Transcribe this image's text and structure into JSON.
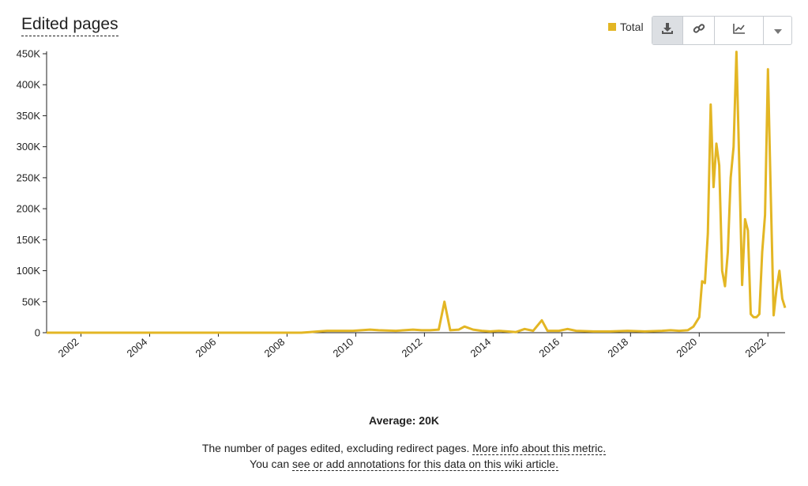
{
  "header": {
    "title": "Edited pages"
  },
  "legend": {
    "label": "Total",
    "color": "#e3b624"
  },
  "toolbar": {
    "download": "download-icon",
    "link": "link-icon",
    "chart_type": "line-chart-icon",
    "more": "chevron-down-icon"
  },
  "footer": {
    "average": "Average: 20K",
    "description": "The number of pages edited, excluding redirect pages.",
    "more_info_link": "More info about this metric.",
    "annotations_prefix": "You can",
    "annotations_link": "see or add annotations for this data on this wiki article."
  },
  "chart_data": {
    "type": "line",
    "title": "Edited pages",
    "series": [
      {
        "name": "Total",
        "color": "#e3b624",
        "points": [
          [
            "2001-01",
            0
          ],
          [
            "2005-01",
            0
          ],
          [
            "2008-06",
            0
          ],
          [
            "2008-09",
            1000
          ],
          [
            "2008-12",
            2000
          ],
          [
            "2009-03",
            3000
          ],
          [
            "2009-06",
            3000
          ],
          [
            "2009-09",
            3000
          ],
          [
            "2009-12",
            3000
          ],
          [
            "2010-03",
            4000
          ],
          [
            "2010-06",
            5000
          ],
          [
            "2010-09",
            4000
          ],
          [
            "2010-12",
            3500
          ],
          [
            "2011-03",
            3000
          ],
          [
            "2011-06",
            4000
          ],
          [
            "2011-09",
            5000
          ],
          [
            "2011-12",
            4000
          ],
          [
            "2012-03",
            4000
          ],
          [
            "2012-06",
            5000
          ],
          [
            "2012-08",
            50000
          ],
          [
            "2012-10",
            4000
          ],
          [
            "2013-01",
            5000
          ],
          [
            "2013-03",
            10000
          ],
          [
            "2013-06",
            5000
          ],
          [
            "2013-09",
            3000
          ],
          [
            "2013-12",
            2000
          ],
          [
            "2014-03",
            3000
          ],
          [
            "2014-06",
            2000
          ],
          [
            "2014-09",
            1000
          ],
          [
            "2014-12",
            6000
          ],
          [
            "2015-03",
            3000
          ],
          [
            "2015-06",
            20000
          ],
          [
            "2015-08",
            3000
          ],
          [
            "2015-12",
            3000
          ],
          [
            "2016-03",
            6000
          ],
          [
            "2016-06",
            3000
          ],
          [
            "2016-12",
            2000
          ],
          [
            "2017-06",
            2000
          ],
          [
            "2017-12",
            3000
          ],
          [
            "2018-06",
            2000
          ],
          [
            "2018-12",
            3000
          ],
          [
            "2019-03",
            4000
          ],
          [
            "2019-06",
            3000
          ],
          [
            "2019-09",
            4000
          ],
          [
            "2019-11",
            10000
          ],
          [
            "2020-01",
            25000
          ],
          [
            "2020-02",
            83000
          ],
          [
            "2020-03",
            80000
          ],
          [
            "2020-04",
            160000
          ],
          [
            "2020-05",
            368000
          ],
          [
            "2020-06",
            235000
          ],
          [
            "2020-07",
            305000
          ],
          [
            "2020-08",
            270000
          ],
          [
            "2020-09",
            100000
          ],
          [
            "2020-10",
            75000
          ],
          [
            "2020-11",
            130000
          ],
          [
            "2020-12",
            250000
          ],
          [
            "2021-01",
            300000
          ],
          [
            "2021-02",
            453000
          ],
          [
            "2021-03",
            270000
          ],
          [
            "2021-04",
            77000
          ],
          [
            "2021-05",
            183000
          ],
          [
            "2021-06",
            165000
          ],
          [
            "2021-07",
            30000
          ],
          [
            "2021-08",
            25000
          ],
          [
            "2021-09",
            25000
          ],
          [
            "2021-10",
            30000
          ],
          [
            "2021-11",
            130000
          ],
          [
            "2021-12",
            190000
          ],
          [
            "2022-01",
            425000
          ],
          [
            "2022-02",
            220000
          ],
          [
            "2022-03",
            28000
          ],
          [
            "2022-04",
            70000
          ],
          [
            "2022-05",
            100000
          ],
          [
            "2022-06",
            55000
          ],
          [
            "2022-07",
            40000
          ]
        ]
      }
    ],
    "x_ticks": [
      "2002",
      "2004",
      "2006",
      "2008",
      "2010",
      "2012",
      "2014",
      "2016",
      "2018",
      "2020",
      "2022"
    ],
    "y_ticks": [
      "0",
      "50K",
      "100K",
      "150K",
      "200K",
      "250K",
      "300K",
      "350K",
      "400K",
      "450K"
    ],
    "ylim": [
      0,
      450000
    ],
    "xlim": [
      "2001-01",
      "2022-07"
    ],
    "grid": false,
    "legend_position": "top-right"
  }
}
